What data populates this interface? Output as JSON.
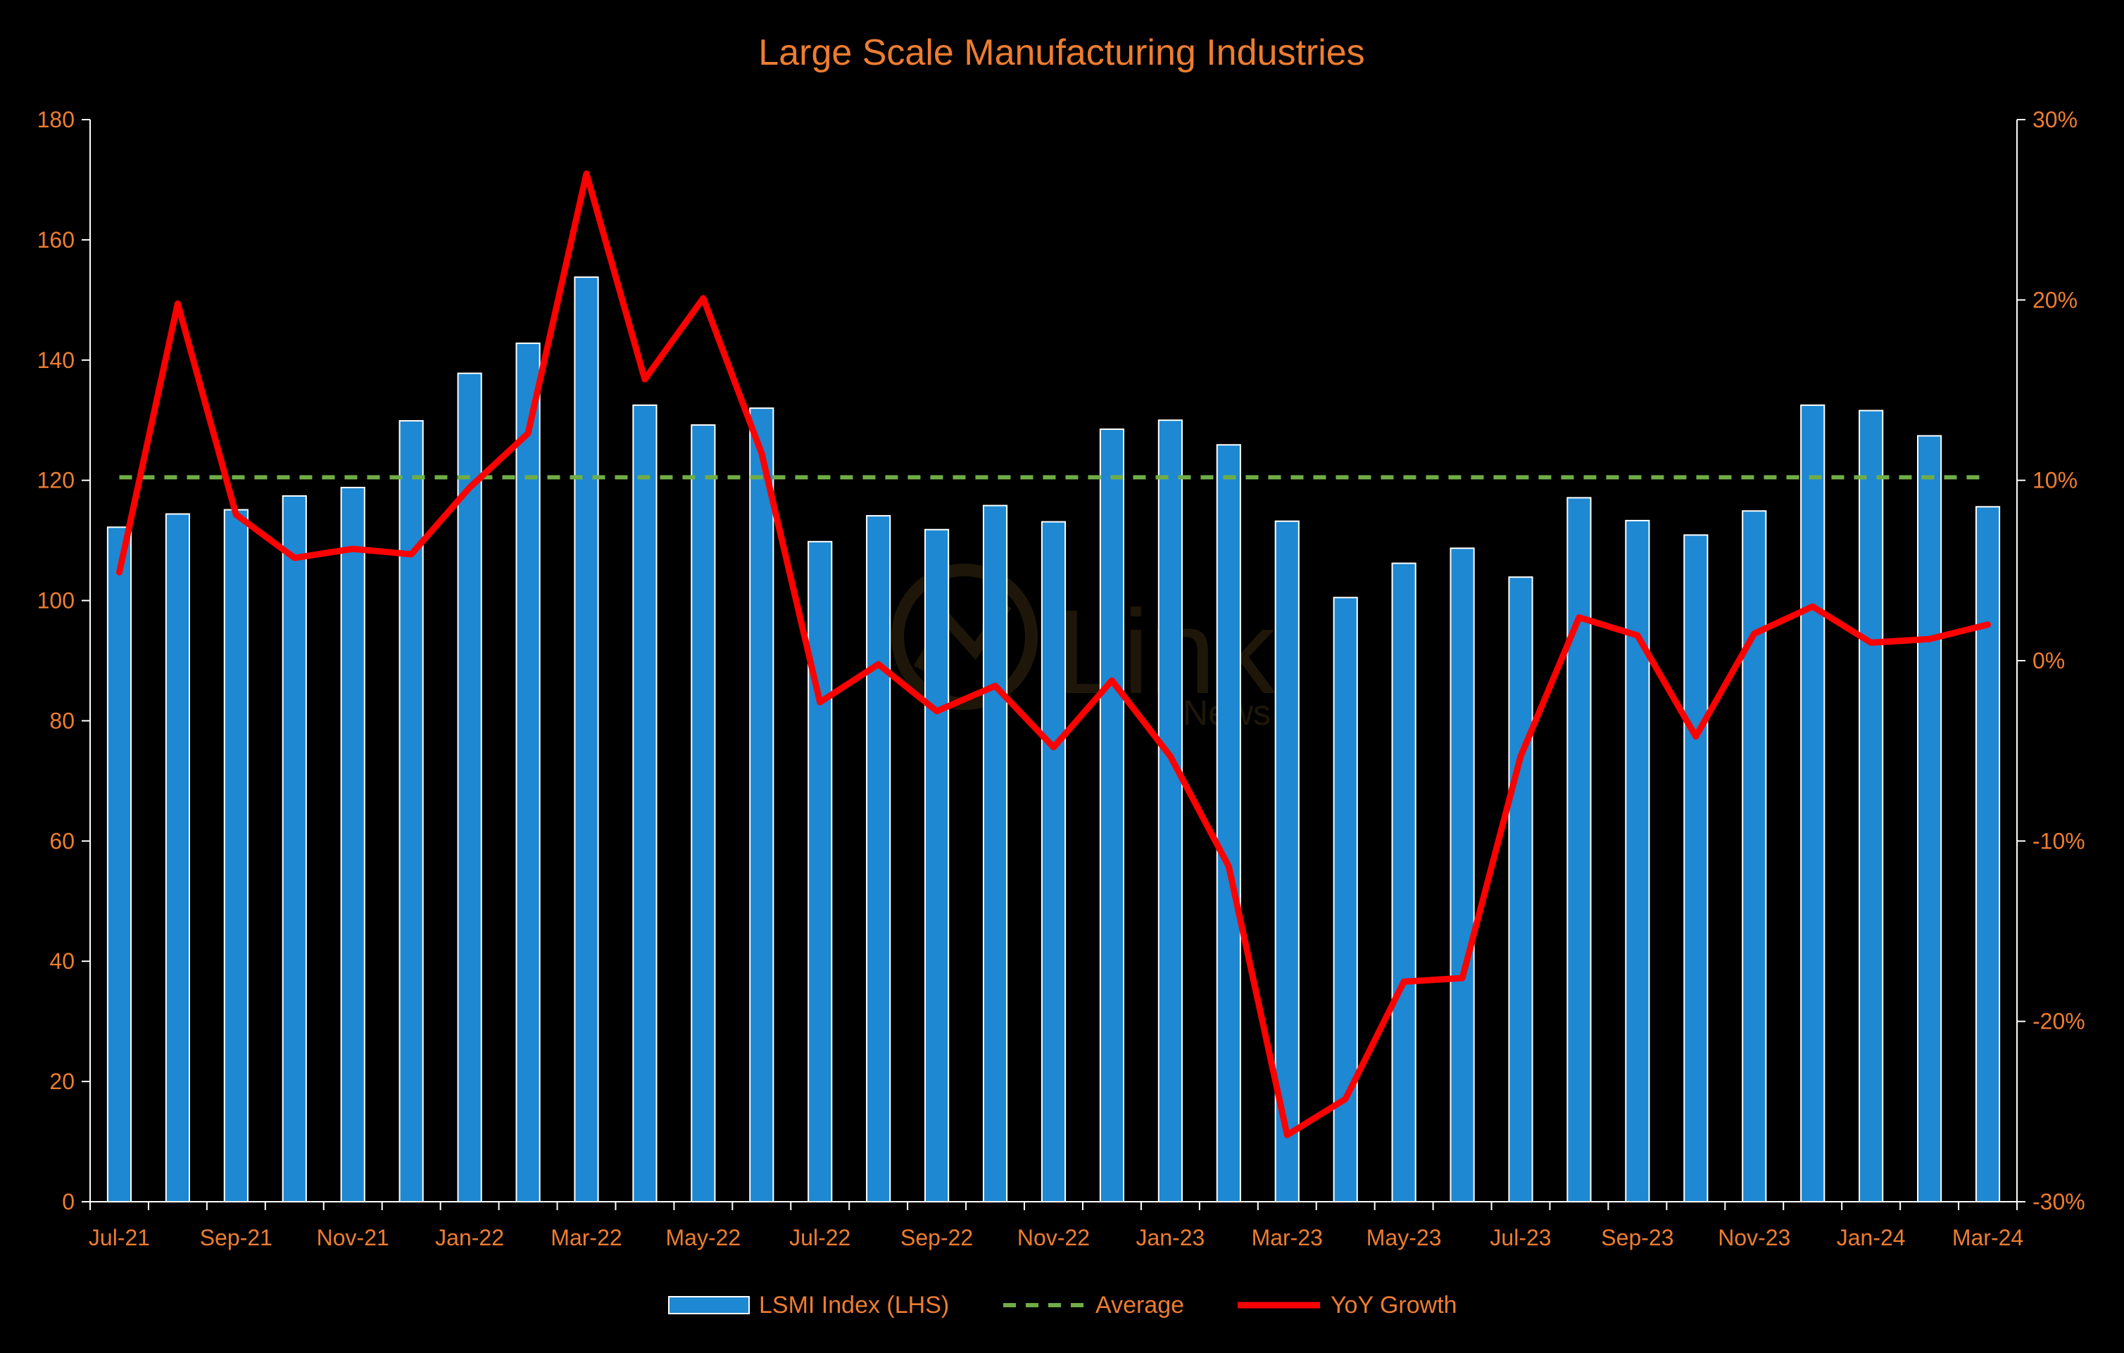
{
  "chart_data": {
    "type": "bar+line",
    "title": "Large Scale Manufacturing Industries",
    "categories": [
      "Jul-21",
      "Aug-21",
      "Sep-21",
      "Oct-21",
      "Nov-21",
      "Dec-21",
      "Jan-22",
      "Feb-22",
      "Mar-22",
      "Apr-22",
      "May-22",
      "Jun-22",
      "Jul-22",
      "Aug-22",
      "Sep-22",
      "Oct-22",
      "Nov-22",
      "Dec-22",
      "Jan-23",
      "Feb-23",
      "Mar-23",
      "Apr-23",
      "May-23",
      "Jun-23",
      "Jul-23",
      "Aug-23",
      "Sep-23",
      "Oct-23",
      "Nov-23",
      "Dec-23",
      "Jan-24",
      "Feb-24",
      "Mar-24"
    ],
    "x_tick_labels": [
      "Jul-21",
      "Sep-21",
      "Nov-21",
      "Jan-22",
      "Mar-22",
      "May-22",
      "Jul-22",
      "Sep-22",
      "Nov-22",
      "Jan-23",
      "Mar-23",
      "May-23",
      "Jul-23",
      "Sep-23",
      "Nov-23",
      "Jan-24",
      "Mar-24"
    ],
    "series": [
      {
        "name": "LSMI Index (LHS)",
        "kind": "bar",
        "axis": "left",
        "color": "#1E88D2",
        "values": [
          112.2,
          114.4,
          115.1,
          117.4,
          118.8,
          129.9,
          137.8,
          142.8,
          153.8,
          132.5,
          129.2,
          132.0,
          109.8,
          114.1,
          111.8,
          115.8,
          113.1,
          128.5,
          130.0,
          125.9,
          113.2,
          100.5,
          106.2,
          108.7,
          103.9,
          117.1,
          113.3,
          110.9,
          114.9,
          132.5,
          131.6,
          127.4,
          115.6
        ]
      },
      {
        "name": "Average",
        "kind": "line",
        "style": "dashed",
        "axis": "left",
        "color": "#70AD47",
        "value": 120.5
      },
      {
        "name": "YoY Growth",
        "kind": "line",
        "axis": "right",
        "color": "#FF0000",
        "values": [
          4.9,
          19.8,
          8.1,
          5.7,
          6.2,
          5.9,
          9.6,
          12.6,
          27.0,
          15.6,
          20.1,
          11.5,
          -2.3,
          -0.2,
          -2.8,
          -1.4,
          -4.8,
          -1.1,
          -5.3,
          -11.4,
          -26.3,
          -24.3,
          -17.8,
          -17.6,
          -5.3,
          2.4,
          1.4,
          -4.2,
          1.5,
          3.0,
          1.0,
          1.2,
          2.0
        ]
      }
    ],
    "left_axis": {
      "min": 0,
      "max": 180,
      "step": 20,
      "ticks": [
        "0",
        "20",
        "40",
        "60",
        "80",
        "100",
        "120",
        "140",
        "160",
        "180"
      ]
    },
    "right_axis": {
      "min": -30,
      "max": 30,
      "step": 10,
      "ticks": [
        "-30%",
        "-20%",
        "-10%",
        "0%",
        "10%",
        "20%",
        "30%"
      ]
    },
    "legend_position": "bottom-center",
    "grid": false,
    "colors": {
      "background": "#000000",
      "text": "#ED7D31",
      "axis": "#FFFFFF",
      "bar_stroke": "#FFFFFF"
    }
  },
  "watermark": {
    "brand": "Link",
    "sub": "News"
  }
}
